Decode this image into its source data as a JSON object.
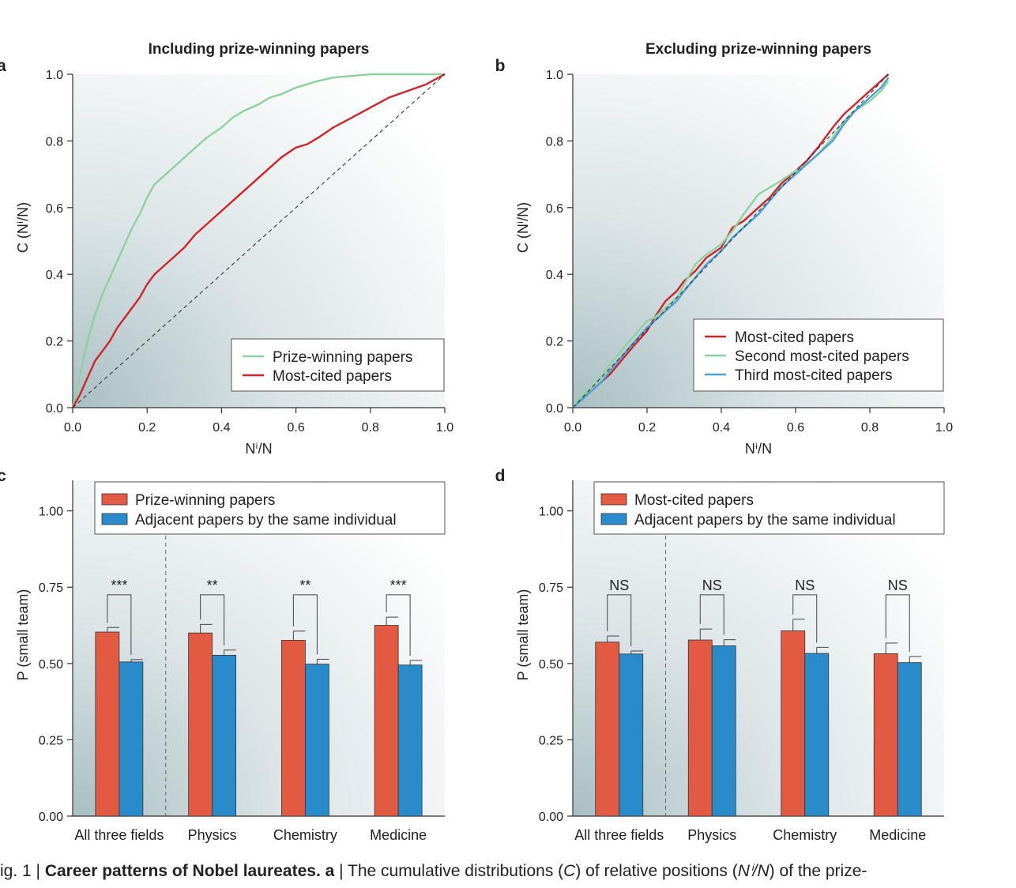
{
  "colors": {
    "green": "#8fd19e",
    "red": "#d1232a",
    "blue": "#4aa1d6",
    "bar_red": "#e35a43",
    "bar_blue": "#2a8bcb",
    "axis": "#333333",
    "bg_dark": "#a9bfc3"
  },
  "panels": {
    "a": {
      "label": "a",
      "title": "Including prize-winning papers",
      "ylabel": "C (Nⁱ/N)",
      "xlabel": "Nⁱ/N"
    },
    "b": {
      "label": "b",
      "title": "Excluding prize-winning papers",
      "ylabel": "C (Nⁱ/N)",
      "xlabel": "Nⁱ/N"
    },
    "c": {
      "label": "c",
      "ylabel": "P (small team)"
    },
    "d": {
      "label": "d",
      "ylabel": "P (small team)"
    }
  },
  "chart_data": [
    {
      "panel": "a",
      "type": "line",
      "title": "Including prize-winning papers",
      "xlabel": "Nⁱ/N",
      "ylabel": "C (Nⁱ/N)",
      "xlim": [
        0,
        1
      ],
      "ylim": [
        0,
        1
      ],
      "xticks": [
        "0.0",
        "0.2",
        "0.4",
        "0.6",
        "0.8",
        "1.0"
      ],
      "yticks": [
        "0.0",
        "0.2",
        "0.4",
        "0.6",
        "0.8",
        "1.0"
      ],
      "legend_position": "bottom-right",
      "series": [
        {
          "name": "Prize-winning papers",
          "color": "green",
          "x": [
            0,
            0.02,
            0.04,
            0.06,
            0.08,
            0.1,
            0.12,
            0.14,
            0.16,
            0.18,
            0.2,
            0.22,
            0.25,
            0.28,
            0.3,
            0.33,
            0.36,
            0.4,
            0.43,
            0.46,
            0.5,
            0.53,
            0.56,
            0.6,
            0.63,
            0.66,
            0.7,
            0.75,
            0.8,
            0.85,
            0.9,
            0.95,
            1.0
          ],
          "y": [
            0,
            0.1,
            0.2,
            0.28,
            0.34,
            0.39,
            0.44,
            0.49,
            0.54,
            0.58,
            0.63,
            0.67,
            0.7,
            0.73,
            0.75,
            0.78,
            0.81,
            0.84,
            0.87,
            0.89,
            0.91,
            0.93,
            0.94,
            0.96,
            0.97,
            0.98,
            0.99,
            0.995,
            1.0,
            1.0,
            1.0,
            1.0,
            1.0
          ]
        },
        {
          "name": "Most-cited papers",
          "color": "red",
          "x": [
            0,
            0.02,
            0.04,
            0.06,
            0.08,
            0.1,
            0.12,
            0.14,
            0.16,
            0.18,
            0.2,
            0.22,
            0.25,
            0.28,
            0.3,
            0.33,
            0.36,
            0.4,
            0.43,
            0.46,
            0.5,
            0.53,
            0.56,
            0.6,
            0.63,
            0.66,
            0.7,
            0.75,
            0.8,
            0.85,
            0.9,
            0.95,
            1.0
          ],
          "y": [
            0,
            0.04,
            0.09,
            0.14,
            0.17,
            0.2,
            0.24,
            0.27,
            0.3,
            0.33,
            0.37,
            0.4,
            0.43,
            0.46,
            0.48,
            0.52,
            0.55,
            0.59,
            0.62,
            0.65,
            0.69,
            0.72,
            0.75,
            0.78,
            0.79,
            0.81,
            0.84,
            0.87,
            0.9,
            0.93,
            0.95,
            0.97,
            1.0
          ]
        },
        {
          "name": "",
          "color": "axis",
          "style": "dashed",
          "x": [
            0,
            1
          ],
          "y": [
            0,
            1
          ]
        }
      ]
    },
    {
      "panel": "b",
      "type": "line",
      "title": "Excluding prize-winning papers",
      "xlabel": "Nⁱ/N",
      "ylabel": "C (Nⁱ/N)",
      "xlim": [
        0,
        1
      ],
      "ylim": [
        0,
        1
      ],
      "xticks": [
        "0.0",
        "0.2",
        "0.4",
        "0.6",
        "0.8",
        "1.0"
      ],
      "yticks": [
        "0.0",
        "0.2",
        "0.4",
        "0.6",
        "0.8",
        "1.0"
      ],
      "legend_position": "bottom-right",
      "series": [
        {
          "name": "Most-cited papers",
          "color": "red",
          "x": [
            0,
            0.02,
            0.05,
            0.08,
            0.1,
            0.13,
            0.16,
            0.2,
            0.22,
            0.25,
            0.28,
            0.3,
            0.33,
            0.36,
            0.4,
            0.43,
            0.46,
            0.5,
            0.53,
            0.56,
            0.6,
            0.63,
            0.66,
            0.7,
            0.73,
            0.76,
            0.8,
            0.83,
            0.85
          ],
          "y": [
            0,
            0.02,
            0.05,
            0.08,
            0.1,
            0.14,
            0.18,
            0.23,
            0.27,
            0.32,
            0.35,
            0.38,
            0.41,
            0.45,
            0.48,
            0.54,
            0.56,
            0.6,
            0.63,
            0.67,
            0.71,
            0.74,
            0.78,
            0.84,
            0.88,
            0.91,
            0.95,
            0.98,
            1.0
          ]
        },
        {
          "name": "Second most-cited papers",
          "color": "green",
          "x": [
            0,
            0.02,
            0.05,
            0.08,
            0.1,
            0.13,
            0.16,
            0.2,
            0.22,
            0.25,
            0.28,
            0.3,
            0.33,
            0.36,
            0.4,
            0.43,
            0.46,
            0.5,
            0.53,
            0.56,
            0.6,
            0.63,
            0.66,
            0.7,
            0.73,
            0.76,
            0.8,
            0.83,
            0.85
          ],
          "y": [
            0,
            0.03,
            0.06,
            0.1,
            0.13,
            0.17,
            0.21,
            0.26,
            0.27,
            0.3,
            0.33,
            0.37,
            0.43,
            0.46,
            0.49,
            0.53,
            0.58,
            0.64,
            0.66,
            0.68,
            0.71,
            0.73,
            0.76,
            0.81,
            0.86,
            0.89,
            0.92,
            0.95,
            0.98
          ]
        },
        {
          "name": "Third most-cited papers",
          "color": "blue",
          "x": [
            0,
            0.02,
            0.05,
            0.08,
            0.1,
            0.13,
            0.16,
            0.2,
            0.22,
            0.25,
            0.28,
            0.3,
            0.33,
            0.36,
            0.4,
            0.43,
            0.46,
            0.5,
            0.53,
            0.56,
            0.6,
            0.63,
            0.66,
            0.7,
            0.73,
            0.76,
            0.8,
            0.83,
            0.85
          ],
          "y": [
            0,
            0.02,
            0.05,
            0.08,
            0.11,
            0.15,
            0.19,
            0.24,
            0.26,
            0.29,
            0.32,
            0.35,
            0.39,
            0.43,
            0.47,
            0.51,
            0.54,
            0.58,
            0.62,
            0.66,
            0.7,
            0.73,
            0.76,
            0.8,
            0.85,
            0.89,
            0.93,
            0.96,
            0.99
          ]
        },
        {
          "name": "",
          "color": "axis",
          "style": "dashed",
          "x": [
            0,
            0.85
          ],
          "y": [
            0,
            1.0
          ]
        }
      ]
    },
    {
      "panel": "c",
      "type": "bar",
      "ylabel": "P (small team)",
      "ylim": [
        0,
        1.1
      ],
      "yticks": [
        "0.00",
        "0.25",
        "0.50",
        "0.75",
        "1.00"
      ],
      "categories": [
        "All three fields",
        "Physics",
        "Chemistry",
        "Medicine"
      ],
      "legend_position": "top-right",
      "series": [
        {
          "name": "Prize-winning papers",
          "color": "bar_red",
          "values": [
            0.603,
            0.6,
            0.576,
            0.625
          ],
          "errors": [
            0.015,
            0.028,
            0.03,
            0.027
          ]
        },
        {
          "name": "Adjacent papers by the same individual",
          "color": "bar_blue",
          "values": [
            0.505,
            0.527,
            0.498,
            0.495
          ],
          "errors": [
            0.008,
            0.017,
            0.016,
            0.015
          ]
        }
      ],
      "significance": [
        "***",
        "**",
        "**",
        "***"
      ]
    },
    {
      "panel": "d",
      "type": "bar",
      "ylabel": "P (small team)",
      "ylim": [
        0,
        1.1
      ],
      "yticks": [
        "0.00",
        "0.25",
        "0.50",
        "0.75",
        "1.00"
      ],
      "categories": [
        "All three fields",
        "Physics",
        "Chemistry",
        "Medicine"
      ],
      "legend_position": "top-right",
      "series": [
        {
          "name": "Most-cited papers",
          "color": "bar_red",
          "values": [
            0.57,
            0.577,
            0.607,
            0.532
          ],
          "errors": [
            0.02,
            0.036,
            0.038,
            0.035
          ]
        },
        {
          "name": "Adjacent papers by the same individual",
          "color": "bar_blue",
          "values": [
            0.531,
            0.558,
            0.533,
            0.503
          ],
          "errors": [
            0.01,
            0.02,
            0.02,
            0.02
          ]
        }
      ],
      "significance": [
        "NS",
        "NS",
        "NS",
        "NS"
      ]
    }
  ],
  "caption": {
    "prefix": "ig. 1 | ",
    "bold": "Career patterns of Nobel laureates. a",
    "text1": " | The cumulative distributions (",
    "italic_c": "C",
    "text2": ") of relative positions (",
    "italic_n": "Nⁱ/N",
    "text3": ") of the prize-"
  }
}
